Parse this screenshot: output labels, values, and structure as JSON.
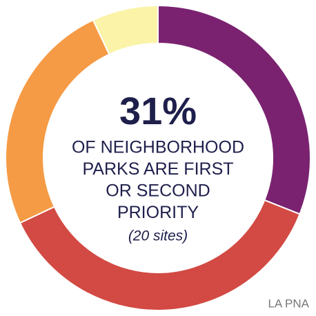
{
  "chart_data": {
    "type": "donut",
    "values": [
      31,
      37,
      25,
      7
    ],
    "colors": [
      "#7a2270",
      "#d24a43",
      "#f59b45",
      "#fbf3a8"
    ],
    "headline": "31%",
    "caption_lines": [
      "OF NEIGHBORHOOD",
      "PARKS ARE FIRST",
      "OR SECOND",
      "PRIORITY"
    ],
    "note": "(20 sites)",
    "source": "LA PNA"
  }
}
